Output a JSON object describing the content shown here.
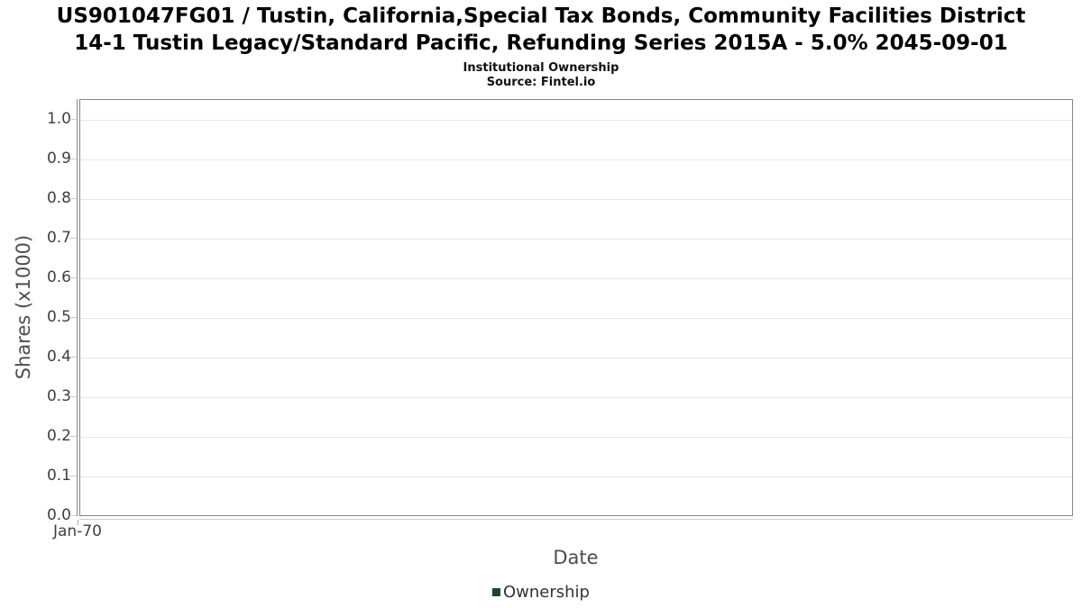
{
  "header": {
    "title_line1": "US901047FG01 / Tustin, California,Special Tax Bonds, Community Facilities District",
    "title_line2": "14-1 Tustin Legacy/Standard Pacific, Refunding Series 2015A - 5.0% 2045-09-01",
    "subtitle": "Institutional Ownership",
    "source": "Source: Fintel.io"
  },
  "chart_data": {
    "type": "line",
    "title": "US901047FG01 / Tustin, California,Special Tax Bonds, Community Facilities District 14-1 Tustin Legacy/Standard Pacific, Refunding Series 2015A - 5.0% 2045-09-01",
    "subtitle": "Institutional Ownership",
    "source": "Source: Fintel.io",
    "xlabel": "Date",
    "ylabel": "Shares (x1000)",
    "ylim": [
      0,
      1.05
    ],
    "y_ticks": [
      0.0,
      0.1,
      0.2,
      0.3,
      0.4,
      0.5,
      0.6,
      0.7,
      0.8,
      0.9,
      1.0
    ],
    "x_ticks": [
      "Jan-70"
    ],
    "grid": true,
    "legend_position": "bottom-center",
    "series": [
      {
        "name": "Ownership",
        "color": "#1e4623",
        "values": []
      }
    ]
  },
  "colors": {
    "plot_border": "#858585",
    "gridline": "#e6e6e6",
    "series_green": "#1e4623"
  }
}
